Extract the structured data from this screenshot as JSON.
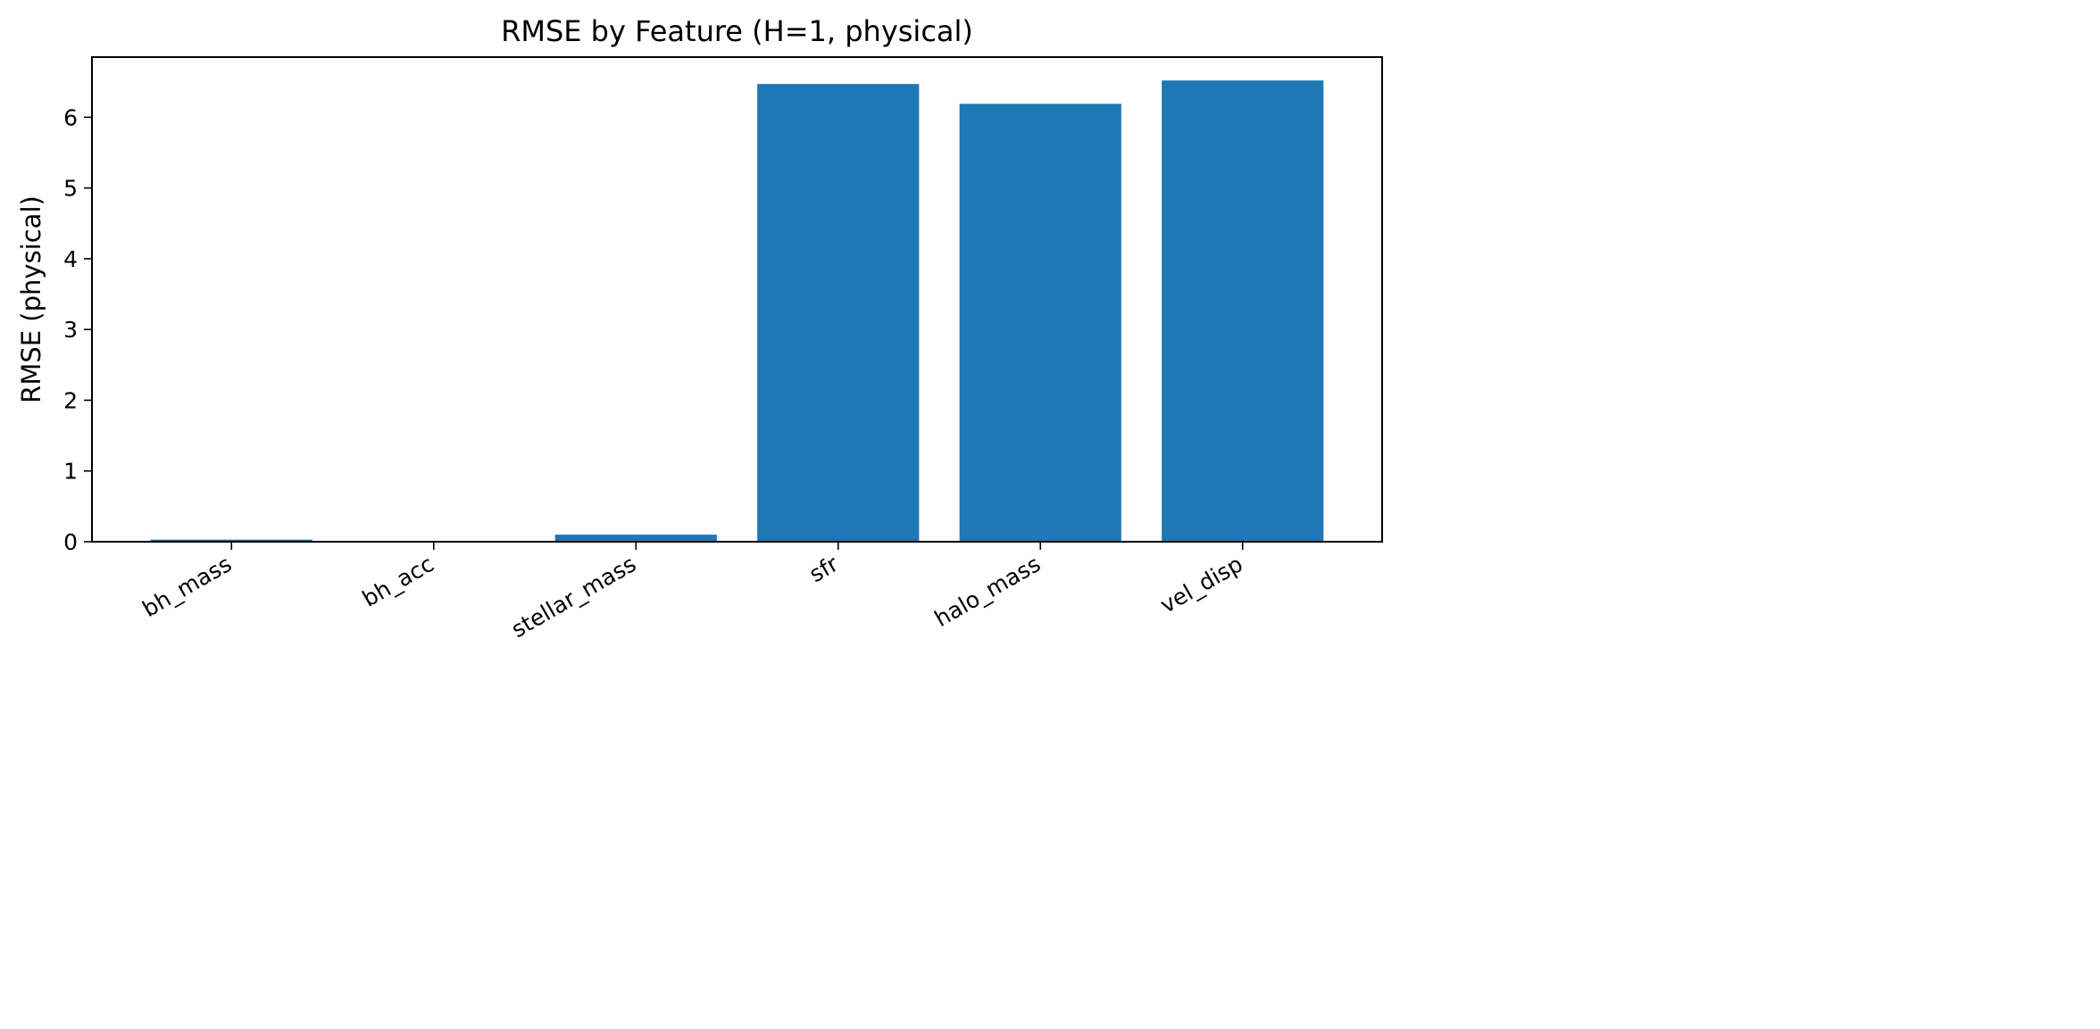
{
  "chart_data": {
    "type": "bar",
    "title": "RMSE by Feature (H=1, physical)",
    "xlabel": "",
    "ylabel": "RMSE (physical)",
    "categories": [
      "bh_mass",
      "bh_acc",
      "stellar_mass",
      "sfr",
      "halo_mass",
      "vel_disp"
    ],
    "values": [
      0.03,
      0.01,
      0.1,
      6.47,
      6.19,
      6.52
    ],
    "ylim": [
      0,
      6.85
    ],
    "yticks": [
      0,
      1,
      2,
      3,
      4,
      5,
      6
    ],
    "grid": false,
    "legend": "none",
    "bar_color": "#1f77b4"
  }
}
